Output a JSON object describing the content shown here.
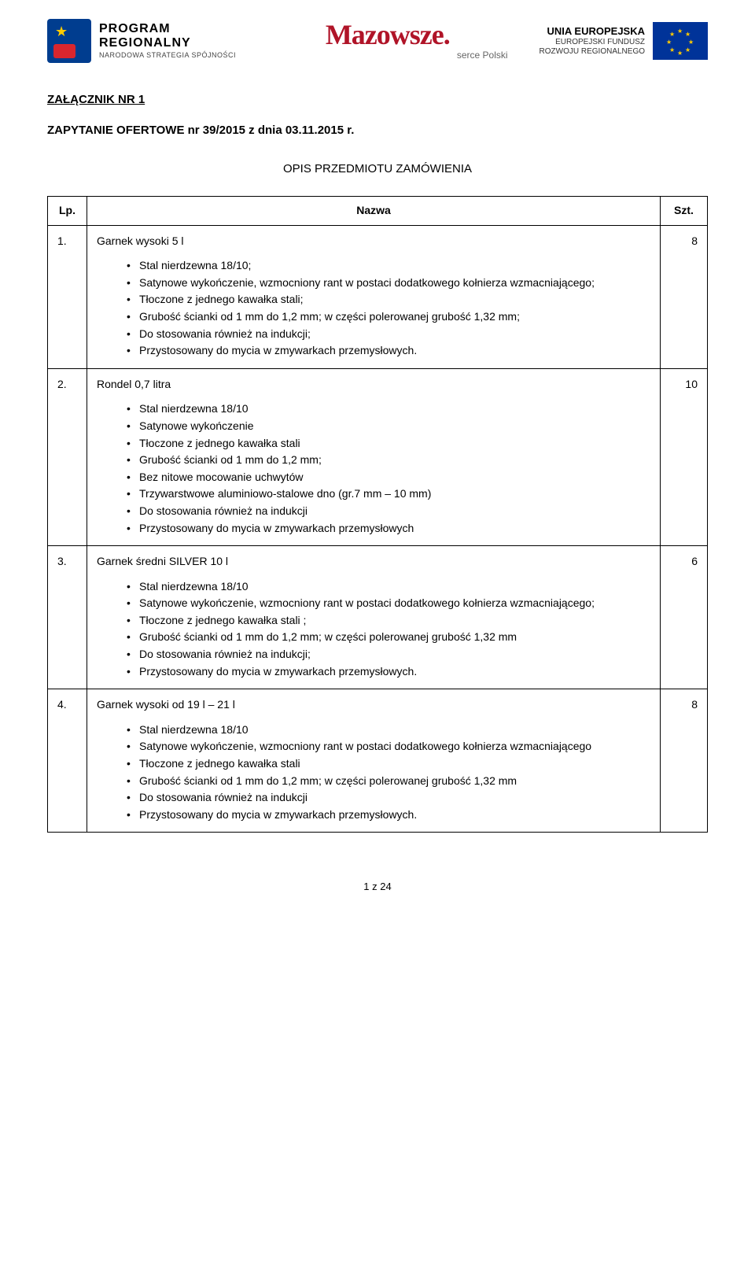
{
  "header": {
    "left": {
      "line1": "PROGRAM",
      "line2": "REGIONALNY",
      "line3": "NARODOWA STRATEGIA SPÓJNOŚCI"
    },
    "center": {
      "main": "Mazowsze.",
      "sub": "serce Polski"
    },
    "right": {
      "line1": "UNIA EUROPEJSKA",
      "line2": "EUROPEJSKI FUNDUSZ",
      "line3": "ROZWOJU REGIONALNEGO"
    }
  },
  "attachment": "ZAŁĄCZNIK NR 1",
  "query": "ZAPYTANIE OFERTOWE nr 39/2015 z dnia 03.11.2015 r.",
  "sectionTitle": "OPIS PRZEDMIOTU ZAMÓWIENIA",
  "columns": {
    "lp": "Lp.",
    "name": "Nazwa",
    "qty": "Szt."
  },
  "items": [
    {
      "lp": "1.",
      "name": "Garnek wysoki  5 l",
      "qty": "8",
      "specs": [
        "Stal nierdzewna 18/10;",
        "Satynowe wykończenie, wzmocniony rant w postaci dodatkowego kołnierza wzmacniającego;",
        "Tłoczone z jednego kawałka stali;",
        "Grubość ścianki od 1 mm do 1,2 mm; w części polerowanej grubość 1,32 mm;",
        "Do stosowania również na indukcji;",
        "Przystosowany do mycia w zmywarkach przemysłowych."
      ]
    },
    {
      "lp": "2.",
      "name": "Rondel 0,7 litra",
      "qty": "10",
      "specs": [
        "Stal nierdzewna 18/10",
        "Satynowe wykończenie",
        "Tłoczone z jednego kawałka stali",
        "Grubość ścianki od 1 mm do 1,2 mm;",
        "Bez nitowe mocowanie uchwytów",
        "Trzywarstwowe aluminiowo-stalowe dno (gr.7 mm – 10 mm)",
        "Do stosowania również na indukcji",
        "Przystosowany do mycia w zmywarkach przemysłowych"
      ]
    },
    {
      "lp": "3.",
      "name": "Garnek średni SILVER 10 l",
      "qty": "6",
      "specs": [
        "Stal nierdzewna 18/10",
        "Satynowe wykończenie, wzmocniony rant w postaci dodatkowego kołnierza wzmacniającego;",
        "Tłoczone z jednego kawałka stali ;",
        "Grubość ścianki od 1 mm do 1,2 mm; w części polerowanej grubość 1,32 mm",
        "Do stosowania również na indukcji;",
        "Przystosowany do mycia w zmywarkach przemysłowych."
      ]
    },
    {
      "lp": "4.",
      "name": "Garnek wysoki od 19 l – 21 l",
      "qty": "8",
      "specs": [
        "Stal nierdzewna 18/10",
        "Satynowe wykończenie, wzmocniony rant w postaci dodatkowego kołnierza wzmacniającego",
        "Tłoczone z jednego kawałka stali",
        "Grubość ścianki od 1 mm do 1,2 mm; w części polerowanej grubość 1,32 mm",
        "Do stosowania również na indukcji",
        "Przystosowany  do mycia w zmywarkach przemysłowych."
      ]
    }
  ],
  "footer": "1 z 24"
}
